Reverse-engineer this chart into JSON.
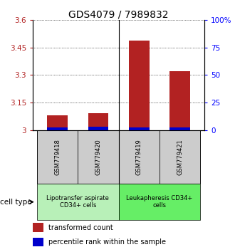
{
  "title": "GDS4079 / 7989832",
  "samples": [
    "GSM779418",
    "GSM779420",
    "GSM779419",
    "GSM779421"
  ],
  "transformed_counts": [
    3.08,
    3.09,
    3.49,
    3.32
  ],
  "percentile_ranks": [
    2,
    3,
    2,
    2
  ],
  "ymin": 3.0,
  "ymax": 3.6,
  "yticks": [
    3.0,
    3.15,
    3.3,
    3.45,
    3.6
  ],
  "ytick_labels": [
    "3",
    "3.15",
    "3.3",
    "3.45",
    "3.6"
  ],
  "right_yticks": [
    0,
    25,
    50,
    75,
    100
  ],
  "right_ytick_labels": [
    "0",
    "25",
    "50",
    "75",
    "100%"
  ],
  "bar_width": 0.5,
  "red_color": "#b22222",
  "blue_color": "#0000cc",
  "group_labels": [
    "Lipotransfer aspirate\nCD34+ cells",
    "Leukapheresis CD34+\ncells"
  ],
  "group_bg_colors": [
    "#b8f0b8",
    "#66ee66"
  ],
  "sample_bg_color": "#cccccc",
  "cell_type_label": "cell type",
  "legend_red": "transformed count",
  "legend_blue": "percentile rank within the sample",
  "grid_color": "#000000",
  "title_fontsize": 10,
  "tick_fontsize": 7.5,
  "label_fontsize": 7.5
}
